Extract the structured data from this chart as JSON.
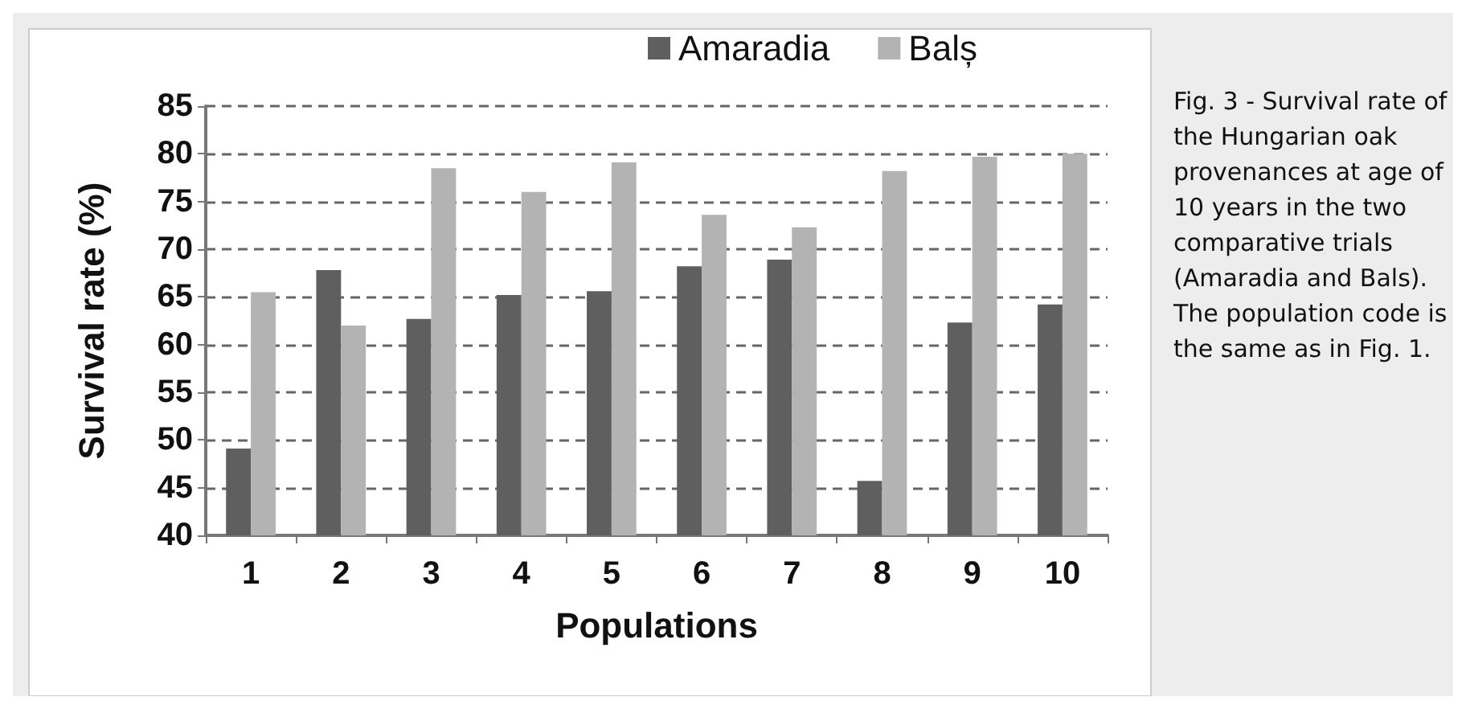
{
  "chart_data": {
    "type": "bar",
    "xlabel": "Populations",
    "ylabel": "Survival rate (%)",
    "categories": [
      "1",
      "2",
      "3",
      "4",
      "5",
      "6",
      "7",
      "8",
      "9",
      "10"
    ],
    "series": [
      {
        "name": "Amaradia",
        "color": "#5f5f5f",
        "values": [
          49.1,
          67.8,
          62.7,
          65.2,
          65.6,
          68.2,
          68.9,
          45.7,
          62.3,
          64.2
        ]
      },
      {
        "name": "Balș",
        "color": "#b3b3b3",
        "values": [
          65.5,
          62.0,
          78.5,
          76.0,
          79.1,
          73.6,
          72.3,
          78.2,
          79.7,
          80.0
        ]
      }
    ],
    "ylim": [
      40,
      85
    ],
    "yticks": [
      40,
      45,
      50,
      55,
      60,
      65,
      70,
      75,
      80,
      85
    ],
    "grid": "y",
    "legend": "top",
    "annotations": [
      "Fig. 3 - Survival rate of the Hungarian oak provenances at age of 10 years in the two comparative trials (Amaradia and Bals). The population code is the same as in Fig. 1."
    ]
  }
}
